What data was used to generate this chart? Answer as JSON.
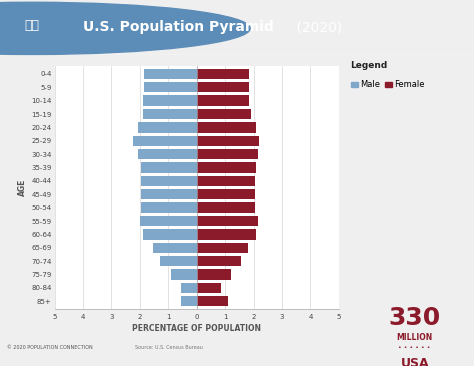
{
  "title_bold": "U.S. Population Pyramid",
  "title_year": " (2020)",
  "header_bg": "#8B1A2A",
  "header_text_color": "#FFFFFF",
  "chart_bg": "#FFFFFF",
  "outer_bg": "#F0EFEF",
  "male_color": "#7FA7C9",
  "female_color": "#8B1A2A",
  "age_groups": [
    "85+",
    "80-84",
    "75-79",
    "70-74",
    "65-69",
    "60-64",
    "55-59",
    "50-54",
    "45-49",
    "40-44",
    "35-39",
    "30-34",
    "25-29",
    "20-24",
    "15-19",
    "10-14",
    "5-9",
    "0-4"
  ],
  "male_pct": [
    0.55,
    0.55,
    0.9,
    1.3,
    1.55,
    1.9,
    2.0,
    1.95,
    1.95,
    1.95,
    1.95,
    2.05,
    2.25,
    2.05,
    1.9,
    1.9,
    1.85,
    1.85
  ],
  "female_pct": [
    1.1,
    0.85,
    1.2,
    1.55,
    1.8,
    2.1,
    2.15,
    2.05,
    2.05,
    2.05,
    2.1,
    2.15,
    2.2,
    2.1,
    1.9,
    1.85,
    1.85,
    1.85
  ],
  "xlim": 5,
  "xlabel": "PERCENTAGE OF POPULATION",
  "ylabel": "AGE",
  "xticks": [
    -5,
    -4,
    -3,
    -2,
    -1,
    0,
    1,
    2,
    3,
    4,
    5
  ],
  "xtick_labels": [
    "5",
    "4",
    "3",
    "2",
    "1",
    "0",
    "1",
    "2",
    "3",
    "4",
    "5"
  ],
  "legend_title": "Legend",
  "legend_male": "Male",
  "legend_female": "Female",
  "footer_text": "© 2020 POPULATION CONNECTION",
  "footer_source": "Source: U.S. Census Bureau",
  "bar_height": 0.78,
  "title_fontsize": 10,
  "axis_label_fontsize": 5.5,
  "tick_fontsize": 5,
  "legend_fontsize": 6,
  "icon_color": "#5B8DB8"
}
